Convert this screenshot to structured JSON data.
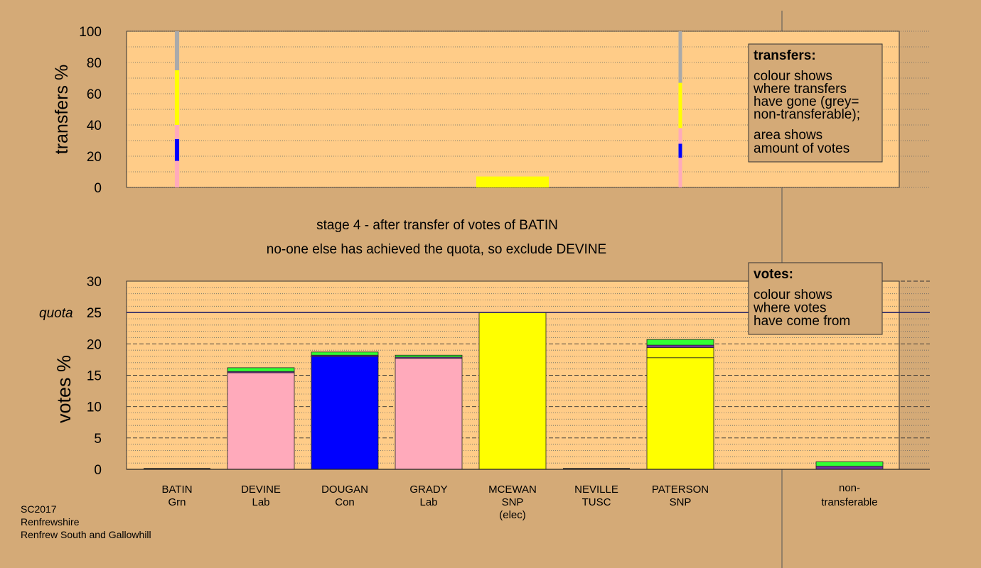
{
  "title_line1": "stage 4 - after transfer of votes of BATIN",
  "title_line2": "no-one else has achieved the quota, so exclude DEVINE",
  "footer": {
    "line1": "SC2017",
    "line2": "Renfrewshire",
    "line3": "Renfrew South and Gallowhill"
  },
  "colors": {
    "background": "#d4aa77",
    "plot": "#ffcc88",
    "grn": "#33ff33",
    "lab": "#ffaabb",
    "con": "#0000ff",
    "snp": "#ffff00",
    "nontransferable": "#aaaaaa",
    "purple": "#7030a0",
    "quota_line": "#1a1a66"
  },
  "chart_data": [
    {
      "type": "bar",
      "ylabel": "transfers %",
      "ylim": [
        0,
        100
      ],
      "yticks": [
        0,
        20,
        40,
        60,
        80,
        100
      ],
      "legend": {
        "title": "transfers:",
        "lines1": [
          "colour shows",
          "where transfers",
          "have gone (grey=",
          "non-transferable);"
        ],
        "lines2": [
          "area shows",
          "amount of votes"
        ],
        "placement": "top-right"
      },
      "columns": [
        {
          "candidate": "BATIN",
          "width_pct": 5,
          "segments": [
            {
              "party": "Lab",
              "color": "#ffaabb",
              "value": 17
            },
            {
              "party": "Con",
              "color": "#0000ff",
              "value": 14
            },
            {
              "party": "Lab",
              "color": "#ffaabb",
              "value": 9
            },
            {
              "party": "SNP",
              "color": "#ffff00",
              "value": 35
            },
            {
              "party": "non-transferable",
              "color": "#aaaaaa",
              "value": 25
            }
          ]
        },
        {
          "candidate": "MCEWAN",
          "width_pct": 100,
          "segments": [
            {
              "party": "SNP",
              "color": "#ffff00",
              "value": 7
            }
          ]
        },
        {
          "candidate": "PATERSON",
          "width_pct": 2.5,
          "segments": [
            {
              "party": "Lab",
              "color": "#ffaabb",
              "value": 19
            },
            {
              "party": "Con",
              "color": "#0000ff",
              "value": 9
            },
            {
              "party": "Lab",
              "color": "#ffaabb",
              "value": 10
            },
            {
              "party": "SNP",
              "color": "#ffff00",
              "value": 29
            },
            {
              "party": "non-transferable",
              "color": "#aaaaaa",
              "value": 33
            }
          ]
        }
      ]
    },
    {
      "type": "bar",
      "ylabel": "votes %",
      "ylim": [
        0,
        30
      ],
      "yticks": [
        0,
        5,
        10,
        15,
        20,
        25,
        30
      ],
      "quota": 25,
      "quota_label": "quota",
      "legend": {
        "title": "votes:",
        "lines1": [
          "colour shows",
          "where votes",
          "have come from"
        ],
        "placement": "top-right"
      },
      "categories": [
        {
          "name": "BATIN",
          "party": "Grn",
          "note": "",
          "segments": []
        },
        {
          "name": "DEVINE",
          "party": "Lab",
          "note": "",
          "segments": [
            {
              "color": "#ffaabb",
              "value": 15.4
            },
            {
              "color": "#7030a0",
              "value": 0.2
            },
            {
              "color": "#33ff33",
              "value": 0.6
            }
          ]
        },
        {
          "name": "DOUGAN",
          "party": "Con",
          "note": "",
          "segments": [
            {
              "color": "#0000ff",
              "value": 18.0
            },
            {
              "color": "#7030a0",
              "value": 0.2
            },
            {
              "color": "#33ff33",
              "value": 0.5
            }
          ]
        },
        {
          "name": "GRADY",
          "party": "Lab",
          "note": "",
          "segments": [
            {
              "color": "#ffaabb",
              "value": 17.7
            },
            {
              "color": "#7030a0",
              "value": 0.2
            },
            {
              "color": "#33ff33",
              "value": 0.3
            }
          ]
        },
        {
          "name": "MCEWAN",
          "party": "SNP",
          "note": "(elec)",
          "segments": [
            {
              "color": "#ffff00",
              "value": 25.0
            }
          ]
        },
        {
          "name": "NEVILLE",
          "party": "TUSC",
          "note": "",
          "segments": []
        },
        {
          "name": "PATERSON",
          "party": "SNP",
          "note": "",
          "segments": [
            {
              "color": "#ffff00",
              "value": 17.8
            },
            {
              "color": "#ffff00",
              "value": 1.6
            },
            {
              "color": "#7030a0",
              "value": 0.4
            },
            {
              "color": "#33ff33",
              "value": 0.9
            }
          ]
        }
      ],
      "nontransferable": {
        "label_line1": "non-",
        "label_line2": "transferable",
        "segments": [
          {
            "color": "#7030a0",
            "value": 0.5
          },
          {
            "color": "#33ff33",
            "value": 0.7
          }
        ]
      }
    }
  ]
}
